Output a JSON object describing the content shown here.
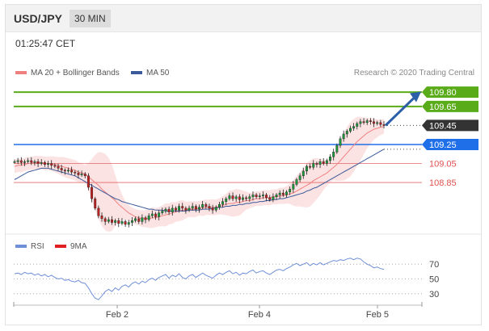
{
  "header": {
    "pair": "USD/JPY",
    "timeframe": "30 MIN"
  },
  "timestamp": "01:25:47 CET",
  "legend": {
    "ma20": "MA 20 + Bollinger Bands",
    "ma50": "MA 50",
    "rsi": "RSI",
    "ma9": "9MA"
  },
  "copyright": "Research © 2020 Trading Central",
  "colors": {
    "resistance": "#5aab1a",
    "support": "#1e6fe8",
    "pivot": "#e05050",
    "current": "#333333",
    "ma20": "#f08080",
    "ma50": "#3a5a99",
    "band": "#fbdada",
    "rsi": "#6f8fd8",
    "arrow": "#2c5fa8"
  },
  "chart_data": [
    {
      "type": "line",
      "name": "price",
      "y_range": [
        108.35,
        109.92
      ],
      "levels": [
        {
          "label": "109.80",
          "value": 109.8,
          "kind": "resistance"
        },
        {
          "label": "109.65",
          "value": 109.65,
          "kind": "resistance"
        },
        {
          "label": "109.45",
          "value": 109.45,
          "kind": "current"
        },
        {
          "label": "109.25",
          "value": 109.25,
          "kind": "support"
        },
        {
          "label": "109.05",
          "value": 109.05,
          "kind": "pivot"
        },
        {
          "label": "108.85",
          "value": 108.85,
          "kind": "pivot"
        }
      ],
      "x_ticks": [
        "Feb 2",
        "Feb 4",
        "Feb 5"
      ],
      "price_close": [
        109.07,
        109.08,
        109.06,
        109.07,
        109.08,
        109.06,
        109.07,
        109.05,
        109.06,
        109.04,
        109.05,
        109.03,
        109.02,
        109.0,
        108.98,
        108.97,
        108.98,
        108.96,
        108.95,
        108.93,
        108.94,
        108.92,
        108.8,
        108.68,
        108.58,
        108.5,
        108.47,
        108.44,
        108.46,
        108.43,
        108.45,
        108.42,
        108.44,
        108.41,
        108.43,
        108.45,
        108.47,
        108.44,
        108.48,
        108.46,
        108.5,
        108.52,
        108.49,
        108.53,
        108.55,
        108.57,
        108.54,
        108.58,
        108.56,
        108.6,
        108.58,
        108.56,
        108.58,
        108.6,
        108.57,
        108.59,
        108.62,
        108.6,
        108.58,
        108.56,
        108.59,
        108.62,
        108.65,
        108.68,
        108.71,
        108.68,
        108.7,
        108.67,
        108.69,
        108.68,
        108.7,
        108.72,
        108.7,
        108.71,
        108.72,
        108.69,
        108.67,
        108.7,
        108.72,
        108.74,
        108.72,
        108.75,
        108.78,
        108.83,
        108.88,
        108.92,
        108.97,
        109.02,
        109.01,
        109.05,
        109.04,
        109.07,
        109.05,
        109.08,
        109.12,
        109.17,
        109.24,
        109.31,
        109.36,
        109.39,
        109.42,
        109.44,
        109.47,
        109.49,
        109.48,
        109.5,
        109.49,
        109.47,
        109.48,
        109.46,
        109.45
      ],
      "ma20": [
        109.02,
        109.03,
        109.03,
        109.04,
        109.05,
        109.05,
        109.06,
        109.06,
        109.06,
        109.05,
        109.05,
        109.05,
        109.04,
        109.03,
        109.02,
        109.01,
        109.0,
        108.99,
        108.98,
        108.96,
        108.95,
        108.94,
        108.91,
        108.88,
        108.85,
        108.82,
        108.78,
        108.75,
        108.72,
        108.69,
        108.66,
        108.62,
        108.59,
        108.56,
        108.53,
        108.51,
        108.49,
        108.48,
        108.47,
        108.47,
        108.47,
        108.48,
        108.48,
        108.49,
        108.5,
        108.51,
        108.52,
        108.53,
        108.54,
        108.55,
        108.56,
        108.56,
        108.57,
        108.57,
        108.57,
        108.58,
        108.58,
        108.59,
        108.59,
        108.59,
        108.59,
        108.6,
        108.61,
        108.62,
        108.63,
        108.63,
        108.64,
        108.64,
        108.65,
        108.66,
        108.66,
        108.67,
        108.68,
        108.68,
        108.69,
        108.69,
        108.69,
        108.7,
        108.7,
        108.71,
        108.71,
        108.72,
        108.73,
        108.74,
        108.76,
        108.78,
        108.8,
        108.82,
        108.84,
        108.87,
        108.89,
        108.91,
        108.93,
        108.95,
        108.98,
        109.01,
        109.04,
        109.08,
        109.12,
        109.16,
        109.2,
        109.24,
        109.28,
        109.31,
        109.34,
        109.37,
        109.39,
        109.41,
        109.42,
        109.43,
        109.44
      ],
      "ma50": [
        108.88,
        108.9,
        108.92,
        108.94,
        108.96,
        108.97,
        108.98,
        108.99,
        109.0,
        109.0,
        109.0,
        108.99,
        108.98,
        108.97,
        108.96,
        108.95,
        108.94,
        108.93,
        108.92,
        108.9,
        108.88,
        108.86,
        108.84,
        108.82,
        108.8,
        108.78,
        108.76,
        108.74,
        108.72,
        108.7,
        108.68,
        108.67,
        108.65,
        108.64,
        108.63,
        108.62,
        108.61,
        108.6,
        108.59,
        108.58,
        108.57,
        108.57,
        108.56,
        108.56,
        108.56,
        108.55,
        108.55,
        108.55,
        108.55,
        108.55,
        108.55,
        108.55,
        108.56,
        108.56,
        108.56,
        108.56,
        108.57,
        108.57,
        108.57,
        108.58,
        108.58,
        108.59,
        108.59,
        108.6,
        108.6,
        108.61,
        108.61,
        108.62,
        108.62,
        108.63,
        108.63,
        108.64,
        108.64,
        108.65,
        108.65,
        108.66,
        108.66,
        108.67,
        108.67,
        108.68,
        108.68,
        108.69,
        108.7,
        108.71,
        108.72,
        108.73,
        108.74,
        108.76,
        108.77,
        108.79,
        108.8,
        108.82,
        108.84,
        108.86,
        108.88,
        108.9,
        108.92,
        108.94,
        108.96,
        108.98,
        109.0,
        109.02,
        109.04,
        109.06,
        109.08,
        109.1,
        109.12,
        109.14,
        109.16,
        109.18,
        109.2
      ]
    },
    {
      "type": "line",
      "name": "rsi",
      "y_range": [
        20,
        80
      ],
      "levels": [
        70,
        50,
        30
      ],
      "rsi": [
        57,
        58,
        56,
        59,
        57,
        58,
        55,
        57,
        54,
        56,
        53,
        55,
        52,
        50,
        51,
        48,
        49,
        47,
        46,
        48,
        45,
        44,
        38,
        30,
        24,
        22,
        27,
        33,
        36,
        33,
        38,
        35,
        40,
        42,
        39,
        44,
        46,
        43,
        47,
        45,
        49,
        51,
        48,
        52,
        54,
        56,
        51,
        55,
        53,
        57,
        52,
        50,
        54,
        56,
        52,
        55,
        58,
        55,
        53,
        51,
        55,
        58,
        56,
        59,
        61,
        57,
        59,
        55,
        58,
        57,
        60,
        62,
        58,
        60,
        61,
        58,
        56,
        59,
        62,
        63,
        61,
        64,
        66,
        69,
        71,
        68,
        70,
        72,
        68,
        71,
        69,
        72,
        69,
        71,
        73,
        75,
        74,
        76,
        75,
        77,
        78,
        76,
        78,
        77,
        73,
        70,
        68,
        65,
        66,
        64,
        63
      ]
    }
  ]
}
